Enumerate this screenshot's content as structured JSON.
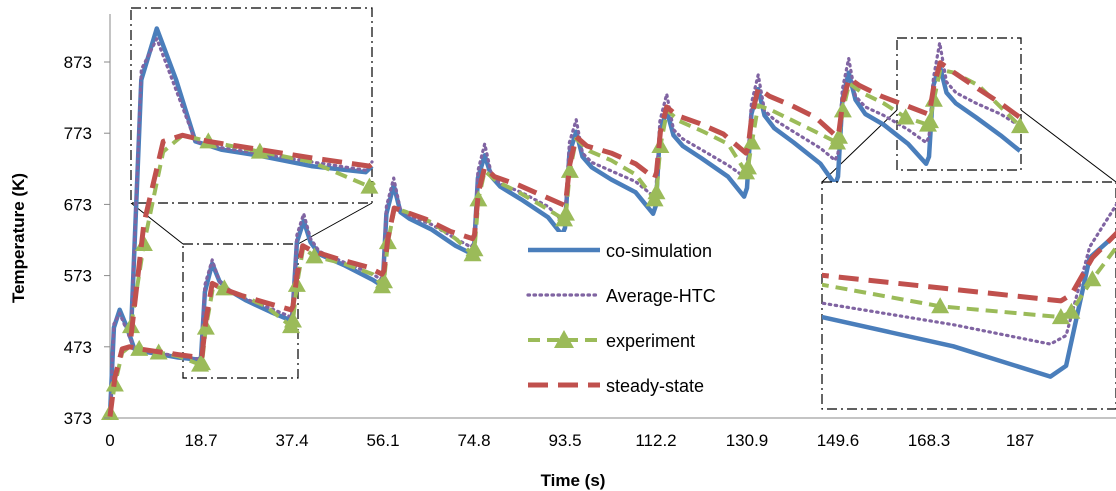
{
  "chart_data": {
    "type": "line",
    "xlabel": "Time (s)",
    "ylabel": "Temperature (K)",
    "xlim": [
      0,
      205
    ],
    "ylim": [
      373,
      960
    ],
    "x_ticks": [
      "0",
      "18.7",
      "37.4",
      "56.1",
      "74.8",
      "93.5",
      "112.2",
      "130.9",
      "149.6",
      "168.3",
      "187"
    ],
    "y_ticks": [
      "373",
      "473",
      "573",
      "673",
      "773",
      "873"
    ],
    "grid": false,
    "legend_position": "center",
    "colors": {
      "co-simulation": "#4a7ebb",
      "Average-HTC": "#8064a2",
      "experiment": "#9bbb59",
      "steady-state": "#c0504d"
    },
    "series": [
      {
        "name": "co-simulation",
        "style": "solid",
        "x": [
          0,
          0.8,
          2.0,
          3.5,
          5.0,
          7.0,
          10.0,
          14.0,
          18.2,
          18.7,
          19.5,
          21.0,
          22.5,
          24.5,
          28.0,
          33.0,
          37.2,
          37.5,
          38.4,
          39.8,
          41.2,
          43.0,
          48.0,
          54.0,
          55.6,
          56.1,
          56.8,
          58.3,
          59.7,
          61.5,
          66.0,
          71.0,
          74.2,
          74.8,
          75.6,
          77.0,
          78.4,
          80.2,
          84.5,
          90.0,
          92.9,
          93.5,
          94.4,
          95.8,
          97.1,
          99.0,
          103.0,
          108.0,
          111.6,
          112.2,
          113.0,
          114.4,
          115.8,
          117.7,
          121.5,
          127.0,
          130.3,
          130.9,
          131.8,
          133.2,
          134.5,
          136.5,
          140.5,
          146.0,
          149.0,
          149.6,
          150.5,
          151.8,
          153.2,
          155.2,
          159.0,
          164.0,
          167.7,
          168.3,
          169.2,
          170.5,
          171.9,
          173.8,
          178.0,
          183.0,
          187.0
        ],
        "y": [
          377,
          500,
          525,
          500,
          470,
          466,
          463,
          458,
          455,
          458,
          550,
          590,
          565,
          552,
          538,
          522,
          510,
          520,
          620,
          650,
          620,
          603,
          588,
          567,
          560,
          568,
          660,
          700,
          662,
          653,
          638,
          615,
          604,
          610,
          710,
          742,
          712,
          698,
          680,
          655,
          630,
          640,
          745,
          775,
          740,
          725,
          708,
          690,
          660,
          672,
          775,
          805,
          770,
          755,
          738,
          712,
          684,
          696,
          800,
          835,
          798,
          780,
          760,
          730,
          701,
          712,
          820,
          858,
          820,
          800,
          785,
          758,
          730,
          740,
          840,
          868,
          830,
          815,
          795,
          770,
          748
        ]
      },
      {
        "name": "Average-HTC",
        "style": "dotted",
        "x": [
          0,
          0.8,
          2.0,
          3.5,
          5.0,
          7.0,
          10.0,
          14.0,
          18.2,
          18.7,
          19.5,
          21.0,
          22.5,
          24.5,
          28.0,
          33.0,
          37.2,
          37.5,
          38.4,
          39.8,
          41.2,
          43.0,
          48.0,
          54.0,
          55.6,
          56.1,
          56.8,
          58.3,
          59.7,
          61.5,
          66.0,
          71.0,
          74.2,
          74.8,
          75.6,
          77.0,
          78.4,
          80.2,
          84.5,
          90.0,
          92.9,
          93.5,
          94.4,
          95.8,
          97.1,
          99.0,
          103.0,
          108.0,
          111.6,
          112.2,
          113.0,
          114.4,
          115.8,
          117.7,
          121.5,
          127.0,
          130.3,
          130.9,
          131.8,
          133.2,
          134.5,
          136.5,
          140.5,
          146.0,
          149.0,
          149.6,
          150.5,
          151.8,
          153.2,
          155.2,
          159.0,
          164.0,
          167.7,
          168.3,
          169.2,
          170.5,
          171.9,
          173.8,
          178.0,
          183.0,
          187.0
        ],
        "y": [
          378,
          505,
          520,
          495,
          470,
          467,
          464,
          460,
          456,
          460,
          560,
          595,
          565,
          553,
          540,
          527,
          515,
          525,
          630,
          660,
          625,
          607,
          592,
          575,
          568,
          575,
          670,
          710,
          665,
          657,
          645,
          625,
          613,
          620,
          720,
          758,
          715,
          702,
          690,
          670,
          650,
          658,
          760,
          792,
          745,
          732,
          720,
          705,
          685,
          695,
          790,
          828,
          778,
          765,
          750,
          728,
          712,
          722,
          815,
          855,
          805,
          792,
          775,
          752,
          735,
          745,
          835,
          878,
          825,
          810,
          798,
          778,
          760,
          768,
          850,
          900,
          845,
          830,
          815,
          800,
          783
        ]
      },
      {
        "name": "experiment",
        "style": "dashed-triangle",
        "x": [
          0,
          1.0,
          2.5,
          4.0,
          6.0,
          10.0,
          14.0,
          18.5,
          18.9,
          19.7,
          21.2,
          23.5,
          27.0,
          32.0,
          37.2,
          37.6,
          38.4,
          39.7,
          42.0,
          48.0,
          54.0,
          55.9,
          56.3,
          57.1,
          58.5,
          61.0,
          66.0,
          71.0,
          74.5,
          74.9,
          75.7,
          77.0,
          79.5,
          84.0,
          89.0,
          93.3,
          93.7,
          94.5,
          95.8,
          98.5,
          103.0,
          108.0,
          111.9,
          112.3,
          113.1,
          114.5,
          117.0,
          122.0,
          127.0,
          130.7,
          131.1,
          131.9,
          133.2,
          136.0,
          140.5,
          145.0,
          149.4,
          149.8,
          150.6,
          151.9,
          154.5,
          159.0,
          163.5,
          168.1,
          168.5,
          169.3,
          170.6,
          173.5,
          178.5,
          183.0,
          187.0
        ],
        "y": [
          380,
          420,
          465,
          473,
          470,
          465,
          460,
          448,
          450,
          500,
          558,
          555,
          545,
          530,
          502,
          510,
          560,
          612,
          600,
          590,
          575,
          558,
          565,
          620,
          668,
          662,
          648,
          625,
          603,
          610,
          680,
          720,
          705,
          690,
          670,
          652,
          660,
          720,
          765,
          748,
          735,
          715,
          680,
          690,
          755,
          805,
          790,
          775,
          758,
          718,
          725,
          760,
          812,
          805,
          790,
          775,
          760,
          768,
          805,
          843,
          830,
          815,
          795,
          785,
          790,
          820,
          862,
          858,
          840,
          810,
          783
        ]
      },
      {
        "name": "steady-state",
        "style": "long-dashed",
        "x": [
          0,
          1.0,
          2.5,
          4.0,
          6.0,
          10.0,
          14.0,
          18.5,
          18.9,
          19.7,
          21.0,
          23.0,
          27.0,
          32.0,
          37.2,
          37.6,
          38.4,
          39.6,
          41.5,
          47.0,
          53.0,
          55.9,
          56.3,
          57.1,
          58.4,
          60.5,
          65.0,
          70.0,
          74.5,
          74.9,
          75.7,
          77.0,
          79.0,
          84.0,
          89.0,
          93.3,
          93.7,
          94.5,
          95.8,
          98.0,
          103.0,
          108.0,
          111.9,
          112.3,
          113.1,
          114.4,
          116.5,
          121.0,
          126.0,
          130.7,
          131.1,
          131.9,
          133.2,
          135.5,
          140.0,
          145.0,
          149.4,
          149.8,
          150.6,
          151.9,
          154.0,
          158.5,
          163.5,
          168.1,
          168.5,
          169.3,
          170.6,
          173.5,
          178.5,
          183.0,
          187.0
        ],
        "y": [
          375,
          430,
          470,
          473,
          470,
          466,
          462,
          458,
          460,
          510,
          562,
          555,
          545,
          535,
          525,
          530,
          572,
          615,
          608,
          596,
          585,
          575,
          580,
          625,
          668,
          663,
          652,
          635,
          625,
          630,
          690,
          725,
          712,
          700,
          685,
          672,
          680,
          730,
          768,
          755,
          745,
          730,
          710,
          718,
          775,
          810,
          798,
          787,
          772,
          745,
          752,
          798,
          836,
          825,
          812,
          795,
          768,
          776,
          818,
          850,
          840,
          825,
          812,
          800,
          806,
          840,
          872,
          858,
          835,
          815,
          795
        ]
      }
    ],
    "insets": [
      {
        "target_x_range": [
          0,
          18.7
        ]
      },
      {
        "target_x_range": [
          159,
          170
        ]
      }
    ]
  }
}
